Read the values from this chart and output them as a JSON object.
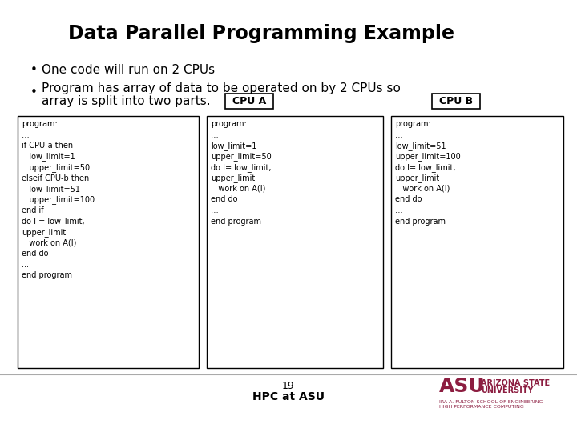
{
  "title": "Data Parallel Programming Example",
  "bullet1": "One code will run on 2 CPUs",
  "bullet2a": "Program has array of data to be operated on by 2 CPUs so",
  "bullet2b": "array is split into two parts.",
  "cpu_a_label": "CPU A",
  "cpu_b_label": "CPU B",
  "main_code": "program:\n…\nif CPU-a then\n   low_limit=1\n   upper_limit=50\nelseif CPU-b then\n   low_limit=51\n   upper_limit=100\nend if\ndo I = low_limit,\nupper_limit\n   work on A(I)\nend do\n...\nend program",
  "cpu_a_code": "program:\n…\nlow_limit=1\nupper_limit=50\ndo I= low_limit,\nupper_limit\n   work on A(I)\nend do\n…\nend program",
  "cpu_b_code": "program:\n…\nlow_limit=51\nupper_limit=100\ndo I= low_limit,\nupper_limit\n   work on A(I)\nend do\n…\nend program",
  "page_number": "19",
  "footer_text": "HPC at ASU",
  "bg_color": "#ffffff",
  "title_color": "#000000",
  "text_color": "#000000",
  "box_border_color": "#000000",
  "footer_line_color": "#aaaaaa",
  "asu_color": "#8C1D40",
  "asu_sub_color": "#8C1D40"
}
